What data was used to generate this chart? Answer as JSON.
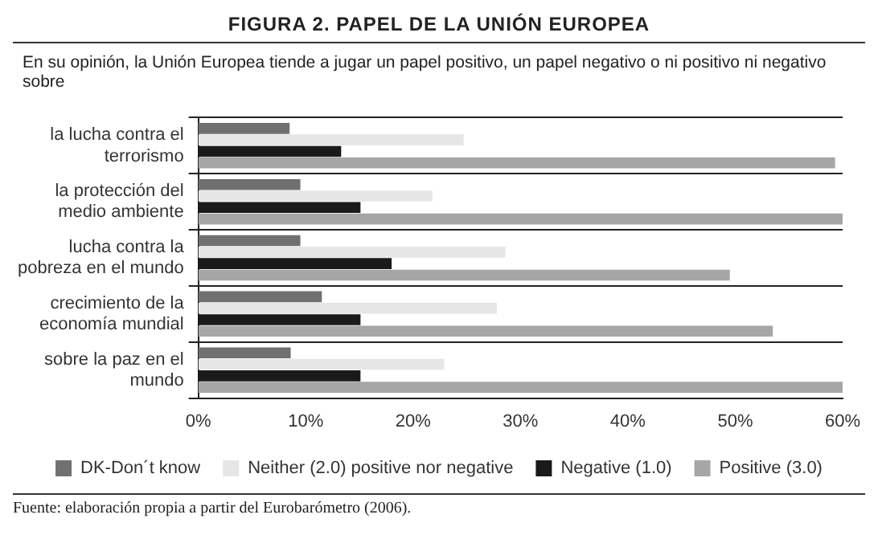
{
  "chart_data": {
    "type": "bar",
    "orientation": "horizontal",
    "title": "FIGURA 2. PAPEL DE LA UNIÓN EUROPEA",
    "subtitle": "En su opinión, la Unión Europea tiende a jugar un papel positivo, un papel  negativo o ni positivo ni negativo sobre",
    "categories": [
      "la lucha contra el terrorismo",
      "la protección del medio ambiente",
      "lucha contra la pobreza en el mundo",
      "crecimiento de la economía mundial",
      "sobre la paz en el mundo"
    ],
    "series": [
      {
        "name": "DK-Don´t know",
        "color": "#707070",
        "values": [
          8.5,
          9.5,
          9.5,
          11.5,
          8.6
        ]
      },
      {
        "name": "Neither (2.0) positive nor negative",
        "color": "#e6e6e6",
        "values": [
          24.7,
          21.8,
          28.6,
          27.8,
          22.9
        ]
      },
      {
        "name": "Negative (1.0)",
        "color": "#1a1a1a",
        "values": [
          13.3,
          15.1,
          18.0,
          15.1,
          15.1
        ]
      },
      {
        "name": "Positive (3.0)",
        "color": "#a6a6a6",
        "values": [
          59.3,
          60,
          49.5,
          53.5,
          60
        ]
      }
    ],
    "xlim": [
      0,
      60
    ],
    "xticks": [
      {
        "value": 0,
        "label": "0%"
      },
      {
        "value": 10,
        "label": "10%"
      },
      {
        "value": 20,
        "label": "20%"
      },
      {
        "value": 30,
        "label": "30%"
      },
      {
        "value": 40,
        "label": "40%"
      },
      {
        "value": 50,
        "label": "50%"
      },
      {
        "value": 60,
        "label": "60%"
      }
    ],
    "grid": "y",
    "legend": "bottom",
    "annotations": [
      "Fuente: elaboración propia a partir del Eurobarómetro (2006)."
    ]
  }
}
